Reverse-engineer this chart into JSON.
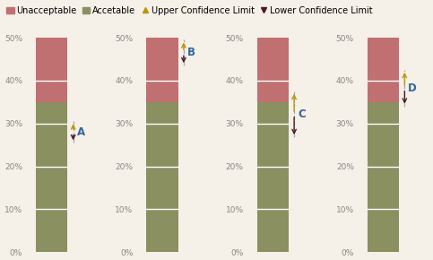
{
  "unacceptable_color": "#c07070",
  "acceptable_color": "#8a9060",
  "background_color": "#f5f0e8",
  "arrow_color_up": "#b8960c",
  "arrow_color_down": "#4a1a2a",
  "bars": [
    {
      "acceptable": 0.35,
      "unacceptable": 0.15
    },
    {
      "acceptable": 0.35,
      "unacceptable": 0.15
    },
    {
      "acceptable": 0.35,
      "unacceptable": 0.15
    },
    {
      "acceptable": 0.35,
      "unacceptable": 0.15
    }
  ],
  "arrows": [
    {
      "label": "A",
      "ucl": 0.305,
      "lcl": 0.255
    },
    {
      "label": "B",
      "ucl": 0.495,
      "lcl": 0.435
    },
    {
      "label": "C",
      "ucl": 0.375,
      "lcl": 0.268
    },
    {
      "label": "D",
      "ucl": 0.425,
      "lcl": 0.34
    }
  ],
  "ylim": [
    0.0,
    0.5
  ],
  "yticks": [
    0.0,
    0.1,
    0.2,
    0.3,
    0.4,
    0.5
  ],
  "ytick_labels": [
    "0%",
    "10%",
    "20%",
    "30%",
    "40%",
    "50%"
  ],
  "tick_fontsize": 6.5,
  "label_fontsize": 8.5,
  "legend_fontsize": 7,
  "fig_width": 4.83,
  "fig_height": 2.9,
  "dpi": 100
}
